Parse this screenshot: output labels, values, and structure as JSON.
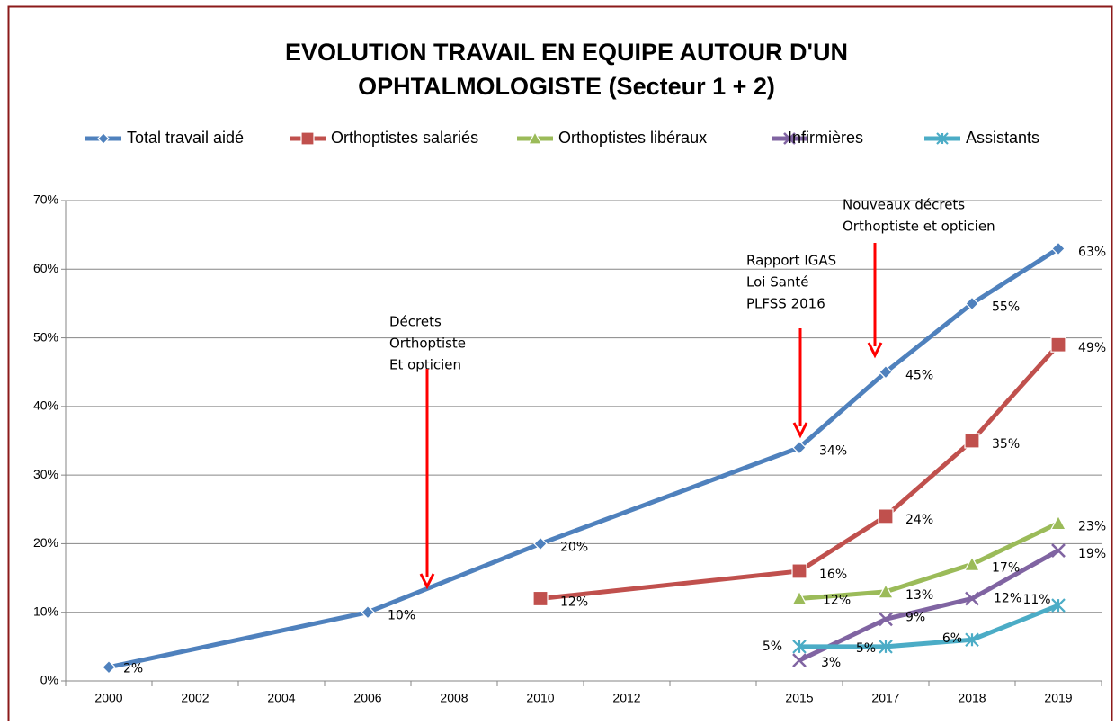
{
  "chart_data": {
    "type": "line",
    "title": [
      "EVOLUTION TRAVAIL EN EQUIPE AUTOUR D'UN",
      "OPHTALMOLOGISTE (Secteur 1 + 2)"
    ],
    "categories": [
      "2000",
      "2002",
      "2004",
      "2006",
      "2008",
      "2010",
      "2012",
      null,
      "2015",
      "2017",
      "2018",
      "2019"
    ],
    "span_gaps": true,
    "grid": true,
    "legend": "top",
    "ylim": [
      0,
      70
    ],
    "yticks": [
      {
        "value": 0,
        "label": "0%"
      },
      {
        "value": 10,
        "label": "10%"
      },
      {
        "value": 20,
        "label": "20%"
      },
      {
        "value": 30,
        "label": "30%"
      },
      {
        "value": 40,
        "label": "40%"
      },
      {
        "value": 50,
        "label": "50%"
      },
      {
        "value": 60,
        "label": "60%"
      },
      {
        "value": 70,
        "label": "70%"
      }
    ],
    "series": [
      {
        "name": "Total travail aidé",
        "color": "#4f81bd",
        "marker": "diamond",
        "values": [
          2,
          null,
          null,
          10,
          null,
          20,
          null,
          null,
          34,
          45,
          55,
          63
        ],
        "value_labels": [
          "2%",
          null,
          null,
          "10%",
          null,
          "20%",
          null,
          null,
          "34%",
          "45%",
          "55%",
          "63%"
        ]
      },
      {
        "name": "Orthoptistes salariés",
        "color": "#c0504d",
        "marker": "square",
        "values": [
          null,
          null,
          null,
          null,
          null,
          12,
          null,
          null,
          16,
          24,
          35,
          49
        ],
        "value_labels": [
          null,
          null,
          null,
          null,
          null,
          "12%",
          null,
          null,
          "16%",
          "24%",
          "35%",
          "49%"
        ]
      },
      {
        "name": "Orthoptistes libéraux",
        "color": "#9bbb59",
        "marker": "triangle",
        "values": [
          null,
          null,
          null,
          null,
          null,
          null,
          null,
          null,
          12,
          13,
          17,
          23
        ],
        "value_labels": [
          null,
          null,
          null,
          null,
          null,
          null,
          null,
          null,
          "12%",
          "13%",
          "17%",
          "23%"
        ]
      },
      {
        "name": "Infirmières",
        "color": "#8064a2",
        "marker": "x",
        "values": [
          null,
          null,
          null,
          null,
          null,
          null,
          null,
          null,
          3,
          9,
          12,
          19
        ],
        "value_labels": [
          null,
          null,
          null,
          null,
          null,
          null,
          null,
          null,
          "3%",
          "9%",
          "12%",
          "19%"
        ]
      },
      {
        "name": "Assistants",
        "color": "#4bacc6",
        "marker": "star",
        "values": [
          null,
          null,
          null,
          null,
          null,
          null,
          null,
          null,
          5,
          5,
          6,
          11
        ],
        "value_labels": [
          null,
          null,
          null,
          null,
          null,
          null,
          null,
          null,
          "5%",
          "5%",
          "6%",
          "11%"
        ]
      }
    ],
    "annotations": [
      {
        "lines": [
          "Décrets",
          "Orthoptiste",
          "Et opticien"
        ],
        "color": "#ff0000"
      },
      {
        "lines": [
          "Rapport IGAS",
          "Loi Santé",
          "PLFSS 2016"
        ],
        "color": "#ff0000"
      },
      {
        "lines": [
          "Nouveaux décrets",
          "Orthoptiste et opticien"
        ],
        "color": "#ff0000"
      }
    ]
  }
}
